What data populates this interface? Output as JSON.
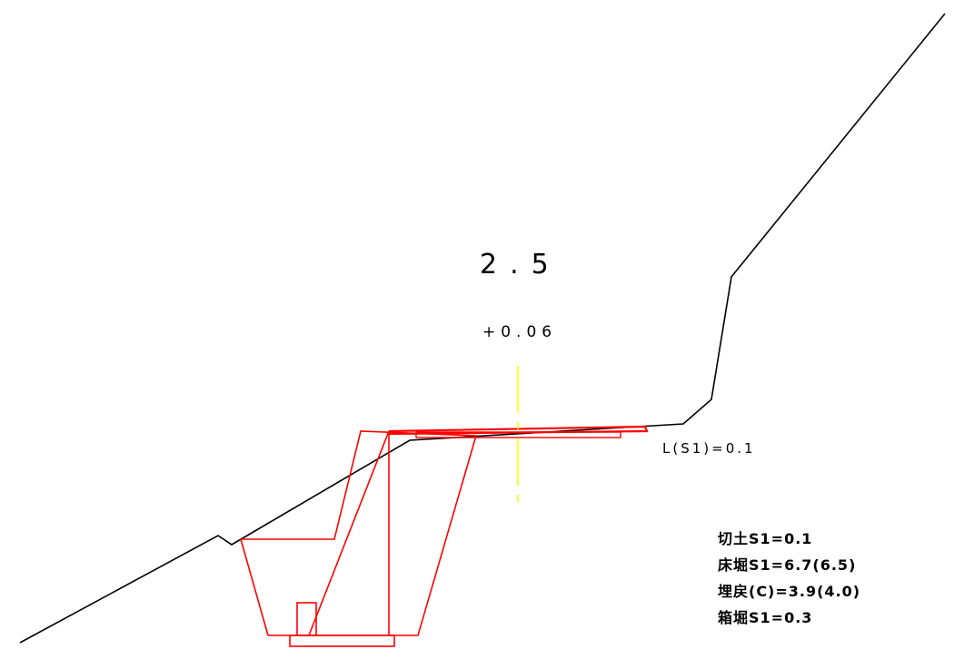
{
  "colors": {
    "ground_line": "#000000",
    "excavation": "#ff0000",
    "centerline": "#ffff00",
    "background": "#ffffff"
  },
  "labels": {
    "station": "2.5",
    "offset": "+0.06",
    "length_s1": "L(S1)=0.1"
  },
  "quantities": [
    "切土S1=0.1",
    "床堀S1=6.7(6.5)",
    "埋戻(C)=3.9(4.0)",
    "箱堀S1=0.3"
  ]
}
